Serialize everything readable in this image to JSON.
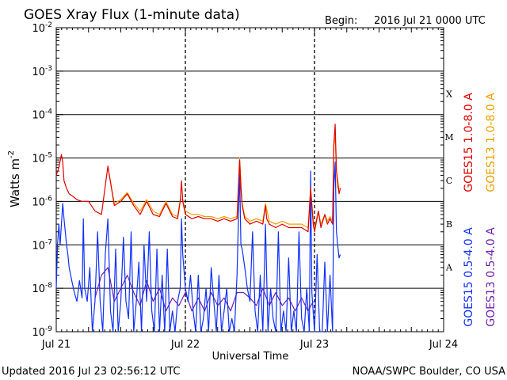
{
  "header": {
    "title": "GOES Xray Flux (1-minute data)",
    "begin_label": "Begin:",
    "begin_value": "2016 Jul 21 0000 UTC"
  },
  "footer": {
    "updated": "Updated 2016 Jul 23 02:56:12 UTC",
    "credit": "NOAA/SWPC Boulder, CO USA"
  },
  "chart_data": {
    "type": "line",
    "title": "GOES Xray Flux (1-minute data)",
    "xlabel": "Universal Time",
    "ylabel": "Watts m",
    "ylabel_superscript": "-2",
    "yscale": "log",
    "ylim": [
      1e-09,
      0.01
    ],
    "xlim_days": [
      0,
      3
    ],
    "x_ticks": [
      {
        "day": 0,
        "label": "Jul 21"
      },
      {
        "day": 1,
        "label": "Jul 22"
      },
      {
        "day": 2,
        "label": "Jul 23"
      },
      {
        "day": 3,
        "label": "Jul 24"
      }
    ],
    "y_ticks": [
      {
        "exp": -9,
        "base": "10",
        "sup": "-9"
      },
      {
        "exp": -8,
        "base": "10",
        "sup": "-8"
      },
      {
        "exp": -7,
        "base": "10",
        "sup": "-7"
      },
      {
        "exp": -6,
        "base": "10",
        "sup": "-6"
      },
      {
        "exp": -5,
        "base": "10",
        "sup": "-5"
      },
      {
        "exp": -4,
        "base": "10",
        "sup": "-4"
      },
      {
        "exp": -3,
        "base": "10",
        "sup": "-3"
      },
      {
        "exp": -2,
        "base": "10",
        "sup": "-2"
      }
    ],
    "flare_classes": [
      {
        "label": "A",
        "exp": -7.5
      },
      {
        "label": "B",
        "exp": -6.5
      },
      {
        "label": "C",
        "exp": -5.5
      },
      {
        "label": "M",
        "exp": -4.5
      },
      {
        "label": "X",
        "exp": -3.5
      }
    ],
    "colors": {
      "goes15_long": "#e00000",
      "goes13_long": "#f0a000",
      "goes15_short": "#1030ff",
      "goes13_short": "#7020b0"
    },
    "legend": [
      {
        "label": "GOES15 1.0-8.0 A",
        "color": "#e00000"
      },
      {
        "label": "GOES13 1.0-8.0 A",
        "color": "#f0a000"
      },
      {
        "label": "GOES15 0.5-4.0 A",
        "color": "#1030ff"
      },
      {
        "label": "GOES13 0.5-4.0 A",
        "color": "#7020b0"
      }
    ],
    "series": [
      {
        "name": "GOES15 1.0-8.0 A",
        "color": "#e00000",
        "x": [
          0.0,
          0.02,
          0.04,
          0.05,
          0.06,
          0.08,
          0.1,
          0.13,
          0.16,
          0.2,
          0.25,
          0.3,
          0.35,
          0.4,
          0.45,
          0.5,
          0.55,
          0.6,
          0.65,
          0.7,
          0.75,
          0.8,
          0.85,
          0.9,
          0.94,
          0.96,
          0.97,
          0.98,
          1.0,
          1.05,
          1.1,
          1.15,
          1.2,
          1.25,
          1.3,
          1.35,
          1.4,
          1.42,
          1.43,
          1.44,
          1.46,
          1.5,
          1.55,
          1.6,
          1.62,
          1.63,
          1.65,
          1.7,
          1.75,
          1.8,
          1.85,
          1.9,
          1.95,
          1.97,
          1.98,
          1.99,
          2.0,
          2.03,
          2.05,
          2.08,
          2.1,
          2.12,
          2.14,
          2.15,
          2.16,
          2.17,
          2.18,
          2.19,
          2.2
        ],
        "y": [
          4e-06,
          6e-06,
          1.2e-05,
          8e-06,
          3e-06,
          2e-06,
          1.5e-06,
          1.3e-06,
          1.1e-06,
          1e-06,
          1e-06,
          6e-07,
          5e-07,
          6.5e-06,
          8e-07,
          1e-06,
          1.5e-06,
          8e-07,
          5e-07,
          1e-06,
          5e-07,
          4.5e-07,
          9e-07,
          4.5e-07,
          4e-07,
          1e-06,
          3e-06,
          1e-06,
          5e-07,
          4e-07,
          4.5e-07,
          4e-07,
          4e-07,
          3.5e-07,
          4e-07,
          3.5e-07,
          4e-07,
          9e-06,
          2e-06,
          8e-07,
          4e-07,
          3e-07,
          3.5e-07,
          3e-07,
          8e-07,
          4e-07,
          3e-07,
          2.5e-07,
          3e-07,
          2.5e-07,
          2.5e-07,
          2.5e-07,
          2e-07,
          2e-06,
          8e-07,
          3e-07,
          2e-07,
          6e-07,
          2.5e-07,
          5e-07,
          3e-07,
          4e-07,
          3e-07,
          2e-05,
          6e-05,
          5e-06,
          3e-06,
          1.5e-06,
          2e-06
        ]
      },
      {
        "name": "GOES13 1.0-8.0 A",
        "color": "#f0a000",
        "x": [
          0.4,
          0.45,
          0.5,
          0.55,
          0.6,
          0.65,
          0.7,
          0.75,
          0.8,
          0.85,
          0.9,
          0.94,
          0.96,
          0.98,
          1.0,
          1.05,
          1.1,
          1.15,
          1.2,
          1.25,
          1.3,
          1.35,
          1.4,
          1.42,
          1.44,
          1.46,
          1.5,
          1.55,
          1.6,
          1.62,
          1.65,
          1.7,
          1.75,
          1.8,
          1.85,
          1.9,
          1.95,
          1.97,
          1.99,
          2.0,
          2.03,
          2.05,
          2.08,
          2.1,
          2.12,
          2.14,
          2.15,
          2.16,
          2.17,
          2.18,
          2.2
        ],
        "y": [
          6e-06,
          9e-07,
          1.1e-06,
          1.6e-06,
          9e-07,
          6e-07,
          1.1e-06,
          6e-07,
          5e-07,
          1e-06,
          5e-07,
          4.5e-07,
          1.1e-06,
          1.1e-06,
          6e-07,
          5e-07,
          5e-07,
          4.5e-07,
          4.5e-07,
          4e-07,
          4.5e-07,
          4e-07,
          4.5e-07,
          1e-05,
          9e-07,
          4.5e-07,
          3.5e-07,
          4e-07,
          3.5e-07,
          9e-07,
          3.5e-07,
          3e-07,
          3.5e-07,
          3e-07,
          3e-07,
          3e-07,
          2.5e-07,
          2e-06,
          3.5e-07,
          2.5e-07,
          6e-07,
          3e-07,
          5e-07,
          3.5e-07,
          4.5e-07,
          3.5e-07,
          2e-05,
          3e-05,
          5e-06,
          2e-06,
          2e-06
        ]
      },
      {
        "name": "GOES15 0.5-4.0 A",
        "color": "#1030ff",
        "x": [
          0.0,
          0.01,
          0.02,
          0.03,
          0.05,
          0.06,
          0.07,
          0.08,
          0.09,
          0.1,
          0.12,
          0.14,
          0.16,
          0.18,
          0.2,
          0.21,
          0.22,
          0.24,
          0.26,
          0.28,
          0.3,
          0.32,
          0.34,
          0.36,
          0.38,
          0.4,
          0.42,
          0.44,
          0.46,
          0.48,
          0.5,
          0.52,
          0.54,
          0.56,
          0.58,
          0.6,
          0.62,
          0.64,
          0.66,
          0.68,
          0.7,
          0.72,
          0.74,
          0.76,
          0.78,
          0.8,
          0.82,
          0.84,
          0.86,
          0.88,
          0.9,
          0.92,
          0.94,
          0.96,
          0.97,
          0.98,
          1.0,
          1.02,
          1.04,
          1.06,
          1.08,
          1.1,
          1.12,
          1.14,
          1.16,
          1.18,
          1.2,
          1.22,
          1.24,
          1.26,
          1.28,
          1.3,
          1.32,
          1.34,
          1.36,
          1.38,
          1.4,
          1.42,
          1.43,
          1.44,
          1.46,
          1.48,
          1.5,
          1.52,
          1.54,
          1.56,
          1.58,
          1.6,
          1.62,
          1.64,
          1.66,
          1.68,
          1.7,
          1.72,
          1.74,
          1.76,
          1.78,
          1.8,
          1.82,
          1.84,
          1.86,
          1.88,
          1.9,
          1.92,
          1.94,
          1.96,
          1.97,
          1.98,
          2.0,
          2.02,
          2.04,
          2.06,
          2.08,
          2.1,
          2.12,
          2.14,
          2.15,
          2.16,
          2.17,
          2.18,
          2.19,
          2.2
        ],
        "y": [
          1e-08,
          1e-07,
          3e-07,
          1e-07,
          9e-07,
          4e-07,
          2e-07,
          1e-07,
          6e-08,
          3e-08,
          1.5e-08,
          8e-09,
          5e-09,
          1.5e-08,
          6e-09,
          4e-07,
          1e-08,
          5e-09,
          3e-08,
          1e-09,
          5e-09,
          2e-07,
          5e-09,
          1e-09,
          6e-08,
          4e-07,
          3e-09,
          1e-09,
          8e-08,
          1e-09,
          5e-09,
          1.5e-07,
          5e-09,
          2e-09,
          2e-07,
          1e-09,
          5e-09,
          4e-08,
          1e-09,
          1e-07,
          5e-09,
          2e-07,
          3e-09,
          1e-09,
          8e-08,
          1e-09,
          2e-08,
          1e-09,
          8e-08,
          1e-09,
          3e-09,
          1e-09,
          5e-09,
          1e-08,
          4e-07,
          6e-08,
          1e-08,
          5e-09,
          2e-08,
          3e-09,
          1e-09,
          2e-08,
          1e-09,
          2e-09,
          1e-08,
          1e-09,
          3e-08,
          5e-09,
          1e-09,
          2e-08,
          1e-09,
          3e-09,
          1e-08,
          1e-09,
          2e-09,
          1e-09,
          2e-08,
          5e-06,
          1e-07,
          8e-08,
          3e-08,
          1e-08,
          5e-09,
          2e-07,
          3e-09,
          1e-09,
          2e-08,
          1e-09,
          3e-07,
          1e-09,
          1e-08,
          2e-09,
          1e-09,
          2e-07,
          1e-09,
          3e-09,
          1e-09,
          5e-08,
          1e-09,
          3e-09,
          1e-09,
          2e-07,
          2e-09,
          1e-09,
          1e-08,
          1e-09,
          5e-06,
          8e-09,
          1e-09,
          6e-08,
          1e-09,
          1e-09,
          4e-08,
          1e-09,
          2e-08,
          1e-09,
          2e-06,
          8e-06,
          2e-07,
          1e-07,
          5e-08,
          6e-08
        ]
      },
      {
        "name": "GOES13 0.5-4.0 A",
        "color": "#7020b0",
        "x": [
          0.3,
          0.35,
          0.4,
          0.45,
          0.5,
          0.55,
          0.6,
          0.65,
          0.7,
          0.75,
          0.8,
          0.85,
          0.9,
          0.95,
          1.0,
          1.05,
          1.1,
          1.15,
          1.2,
          1.25,
          1.3,
          1.35,
          1.4,
          1.45,
          1.5,
          1.55,
          1.6,
          1.65,
          1.7,
          1.75,
          1.8,
          1.85,
          1.9,
          1.95,
          1.99
        ],
        "y": [
          6e-09,
          2e-08,
          3e-08,
          5e-09,
          1e-08,
          2e-08,
          8e-09,
          4e-09,
          1.5e-08,
          5e-09,
          1e-08,
          3e-09,
          6e-09,
          4e-09,
          8e-09,
          3e-09,
          6e-09,
          3e-09,
          8e-09,
          4e-09,
          6e-09,
          3e-09,
          8e-09,
          8e-09,
          6e-09,
          4e-09,
          1e-08,
          4e-09,
          8e-09,
          4e-09,
          6e-09,
          3e-09,
          6e-09,
          3e-09,
          5e-09
        ]
      }
    ]
  }
}
